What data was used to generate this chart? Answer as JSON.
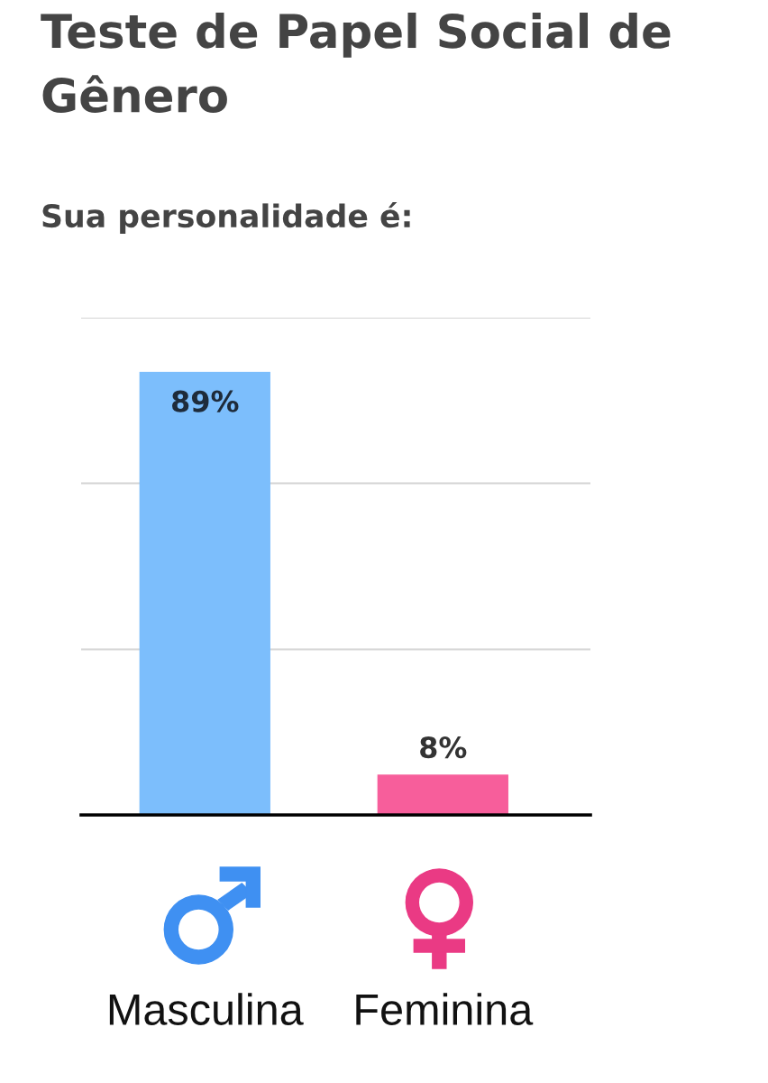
{
  "chart_data": {
    "type": "bar",
    "title": "Teste de Papel Social de Gênero",
    "subtitle": "Sua personalidade é:",
    "categories": [
      "Masculina",
      "Feminina"
    ],
    "values": [
      89,
      8
    ],
    "colors": [
      "#7cbefc",
      "#f75e9b"
    ],
    "value_labels": [
      "89%",
      "8%"
    ],
    "ylim": [
      0,
      100
    ],
    "yticks": [
      {
        "value": 33.3,
        "label": null
      },
      {
        "value": 66.7,
        "label": null
      },
      {
        "value": 100,
        "label": null
      }
    ],
    "grid": "y",
    "tick_labels": "x"
  }
}
